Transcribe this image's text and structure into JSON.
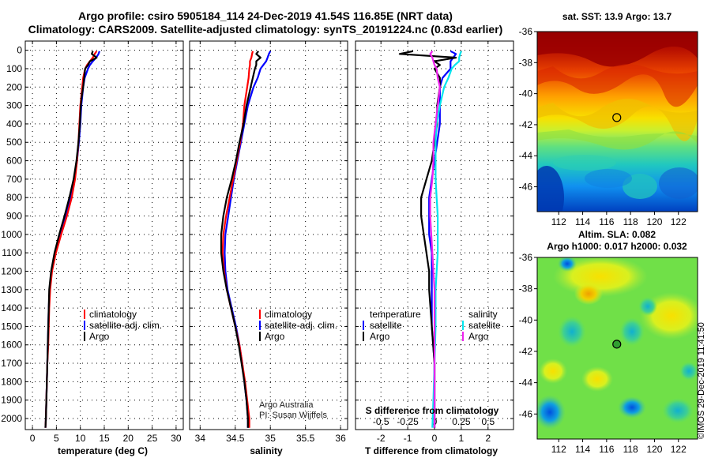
{
  "header": {
    "title_line1": "Argo profile: csiro 5905184_114 24-Dec-2019 41.54S 116.85E (NRT data)",
    "title_line2": "Climatology: CARS2009. Satellite-adjusted climatology: synTS_20191224.nc (0.83d earlier)"
  },
  "colors": {
    "climatology": "#ff0000",
    "satellite": "#0000ff",
    "argo": "#000000",
    "s_satellite": "#00e5ee",
    "s_argo": "#ee22ee"
  },
  "depth_axis": {
    "ticks": [
      "0",
      "100",
      "200",
      "300",
      "400",
      "500",
      "600",
      "700",
      "800",
      "900",
      "1000",
      "1100",
      "1200",
      "1300",
      "1400",
      "1500",
      "1600",
      "1700",
      "1800",
      "1900",
      "2000"
    ],
    "range": [
      -50,
      2060
    ]
  },
  "chart_data": [
    {
      "type": "line",
      "panel": "temperature",
      "xlabel": "temperature (deg C)",
      "xlim": [
        -1.5,
        31.5
      ],
      "xticks": [
        "0",
        "5",
        "10",
        "15",
        "20",
        "25",
        "30"
      ],
      "legend": [
        "climatology",
        "satellite-adj. clim.",
        "Argo"
      ],
      "series": [
        {
          "name": "climatology",
          "depth": [
            5,
            20,
            40,
            60,
            80,
            100,
            150,
            200,
            250,
            300,
            400,
            500,
            600,
            700,
            800,
            900,
            1000,
            1100,
            1200,
            1300,
            1400,
            1500,
            1600,
            1700,
            1800,
            1900,
            2000,
            2050
          ],
          "values": [
            13.4,
            13.0,
            12.6,
            12.0,
            11.4,
            11.0,
            10.6,
            10.4,
            10.2,
            10.0,
            9.8,
            9.6,
            9.3,
            8.9,
            8.2,
            7.2,
            6.0,
            4.9,
            4.1,
            3.7,
            3.5,
            3.4,
            3.3,
            3.1,
            3.0,
            2.9,
            2.8,
            2.7
          ]
        },
        {
          "name": "satellite-adj. clim.",
          "depth": [
            5,
            20,
            40,
            60,
            80,
            100,
            150,
            200,
            250,
            300,
            400,
            500,
            600,
            700,
            800,
            900,
            1000,
            1100,
            1200,
            1300,
            1400,
            1500,
            1600,
            1700,
            1800,
            1900,
            2000,
            2050
          ],
          "values": [
            14.0,
            13.8,
            13.3,
            12.6,
            12.0,
            11.6,
            10.9,
            10.6,
            10.4,
            10.2,
            10.0,
            9.7,
            9.3,
            8.8,
            8.0,
            7.0,
            5.8,
            4.8,
            4.0,
            3.6,
            3.4,
            3.3,
            3.2,
            3.1,
            3.0,
            2.9,
            2.8,
            2.7
          ]
        },
        {
          "name": "Argo",
          "depth": [
            5,
            20,
            40,
            60,
            80,
            100,
            150,
            200,
            250,
            300,
            400,
            500,
            600,
            700,
            800,
            900,
            1000,
            1100,
            1200,
            1300,
            1400,
            1500,
            1600,
            1700,
            1800,
            1900,
            2000,
            2050
          ],
          "values": [
            12.6,
            12.4,
            13.4,
            12.0,
            11.6,
            11.0,
            10.8,
            10.6,
            10.3,
            10.1,
            9.9,
            9.6,
            9.2,
            8.6,
            7.7,
            6.7,
            5.6,
            4.6,
            3.9,
            3.5,
            3.4,
            3.3,
            3.2,
            3.1,
            3.0,
            2.9,
            2.8,
            2.7
          ]
        }
      ]
    },
    {
      "type": "line",
      "panel": "salinity",
      "xlabel": "salinity",
      "xlim": [
        33.85,
        36.1
      ],
      "xticks": [
        "34",
        "34.5",
        "35",
        "35.5",
        "36"
      ],
      "legend": [
        "climatology",
        "satellite-adj. clim.",
        "Argo"
      ],
      "series": [
        {
          "name": "climatology",
          "depth": [
            5,
            20,
            40,
            60,
            80,
            100,
            150,
            200,
            250,
            300,
            400,
            500,
            600,
            700,
            800,
            900,
            1000,
            1100,
            1200,
            1300,
            1400,
            1500,
            1600,
            1700,
            1800,
            1900,
            2000,
            2050
          ],
          "values": [
            34.75,
            34.74,
            34.73,
            34.71,
            34.71,
            34.7,
            34.69,
            34.67,
            34.65,
            34.63,
            34.61,
            34.57,
            34.52,
            34.47,
            34.42,
            34.37,
            34.33,
            34.32,
            34.34,
            34.38,
            34.44,
            34.5,
            34.56,
            34.6,
            34.64,
            34.67,
            34.7,
            34.7
          ]
        },
        {
          "name": "satellite-adj. clim.",
          "depth": [
            5,
            20,
            40,
            60,
            80,
            100,
            150,
            200,
            250,
            300,
            400,
            500,
            600,
            700,
            800,
            900,
            1000,
            1100,
            1200,
            1300,
            1400,
            1500,
            1600,
            1700,
            1800,
            1900,
            2000,
            2050
          ],
          "values": [
            35.0,
            34.98,
            34.96,
            34.94,
            34.9,
            34.86,
            34.82,
            34.76,
            34.72,
            34.68,
            34.63,
            34.58,
            34.53,
            34.48,
            34.44,
            34.4,
            34.36,
            34.35,
            34.36,
            34.39,
            34.45,
            34.51,
            34.56,
            34.6,
            34.63,
            34.66,
            34.68,
            34.68
          ]
        },
        {
          "name": "Argo",
          "depth": [
            5,
            20,
            40,
            60,
            80,
            100,
            150,
            200,
            250,
            300,
            400,
            500,
            600,
            700,
            800,
            900,
            1000,
            1100,
            1200,
            1300,
            1400,
            1500,
            1600,
            1700,
            1800,
            1900,
            2000,
            2050
          ],
          "values": [
            34.83,
            34.8,
            34.86,
            34.8,
            34.8,
            34.78,
            34.75,
            34.72,
            34.69,
            34.66,
            34.62,
            34.56,
            34.51,
            34.45,
            34.38,
            34.33,
            34.3,
            34.3,
            34.33,
            34.38,
            34.44,
            34.5,
            34.55,
            34.59,
            34.63,
            34.66,
            34.68,
            34.68
          ]
        }
      ]
    },
    {
      "type": "line",
      "panel": "difference",
      "xlabel": "T difference from climatology",
      "xlabel_top": "S difference from climatology",
      "xlim": [
        -2.95,
        2.95
      ],
      "xticks": [
        "-2",
        "-1",
        "0",
        "1",
        "2"
      ],
      "xticks_top": [
        "-0.5",
        "-0.25",
        "0",
        "0.25",
        "0.5"
      ],
      "legend_temperature": {
        "title": "temperature",
        "items": [
          "satellite",
          "Argo"
        ]
      },
      "legend_salinity": {
        "title": "salinity",
        "items": [
          "satellite",
          "Argo"
        ]
      },
      "series": [
        {
          "name": "temperature satellite",
          "depth": [
            5,
            20,
            40,
            60,
            80,
            100,
            150,
            200,
            300,
            400,
            500,
            600,
            700,
            800,
            900,
            1000,
            1100,
            1200,
            1300,
            1500,
            1700,
            1900,
            2050
          ],
          "values": [
            0.6,
            0.8,
            0.7,
            0.6,
            0.6,
            0.6,
            0.3,
            0.2,
            0.2,
            0.2,
            0.1,
            0.0,
            -0.1,
            -0.2,
            -0.2,
            -0.2,
            -0.1,
            -0.1,
            -0.1,
            -0.1,
            0.0,
            0.0,
            0.0
          ]
        },
        {
          "name": "temperature Argo",
          "depth": [
            5,
            20,
            40,
            60,
            80,
            100,
            150,
            200,
            300,
            400,
            500,
            600,
            700,
            800,
            900,
            1000,
            1100,
            1200,
            1300,
            1500,
            1700,
            1900,
            2050
          ],
          "values": [
            -0.8,
            -1.3,
            0.8,
            0.0,
            0.2,
            0.0,
            0.2,
            0.2,
            0.1,
            0.1,
            0.0,
            -0.1,
            -0.3,
            -0.5,
            -0.5,
            -0.4,
            -0.3,
            -0.2,
            -0.2,
            -0.1,
            0.0,
            0.0,
            0.0
          ]
        },
        {
          "name": "salinity satellite",
          "depth": [
            5,
            20,
            40,
            60,
            80,
            100,
            150,
            200,
            300,
            400,
            500,
            600,
            700,
            800,
            900,
            1000,
            1100,
            1200,
            1300,
            1500,
            1700,
            1900,
            2050
          ],
          "values": [
            0.25,
            0.24,
            0.23,
            0.23,
            0.19,
            0.16,
            0.13,
            0.09,
            0.05,
            0.02,
            0.01,
            0.01,
            0.01,
            0.02,
            0.03,
            0.03,
            0.03,
            0.02,
            0.01,
            0.01,
            0.0,
            -0.01,
            -0.02
          ]
        },
        {
          "name": "salinity Argo",
          "depth": [
            5,
            20,
            40,
            60,
            80,
            100,
            150,
            200,
            300,
            400,
            500,
            600,
            700,
            800,
            900,
            1000,
            1100,
            1200,
            1300,
            1500,
            1700,
            1900,
            2050
          ],
          "values": [
            -0.02,
            -0.04,
            -0.02,
            -0.01,
            0.0,
            0.02,
            0.03,
            0.05,
            0.03,
            0.01,
            -0.01,
            -0.01,
            -0.02,
            -0.04,
            -0.04,
            -0.03,
            -0.02,
            -0.01,
            0.0,
            0.0,
            0.0,
            0.0,
            0.0
          ]
        }
      ]
    }
  ],
  "map_sst": {
    "title": "sat. SST: 13.9 Argo: 13.7",
    "lat_ticks": [
      "-36",
      "-38",
      "-40",
      "-42",
      "-44",
      "-46"
    ],
    "lon_ticks": [
      "112",
      "114",
      "116",
      "118",
      "120",
      "122"
    ],
    "lat_range": [
      -36,
      -47.6
    ],
    "lon_range": [
      110.2,
      123.6
    ],
    "marker": {
      "lon": 116.85,
      "lat": -41.54
    }
  },
  "map_sla": {
    "title_line1": "Altim. SLA: 0.082",
    "title_line2": "Argo h1000: 0.017 h2000: 0.032",
    "lat_ticks": [
      "-36",
      "-38",
      "-40",
      "-42",
      "-44",
      "-46"
    ],
    "lon_ticks": [
      "112",
      "114",
      "116",
      "118",
      "120",
      "122"
    ],
    "lat_range": [
      -36,
      -47.6
    ],
    "lon_range": [
      110.2,
      123.6
    ],
    "marker": {
      "lon": 116.85,
      "lat": -41.54
    }
  },
  "credits": {
    "line1": "Argo Australia",
    "line2": "PI: Susan Wijffels"
  },
  "watermark": "©IMOS 29-Dec-2019 11:41:50"
}
